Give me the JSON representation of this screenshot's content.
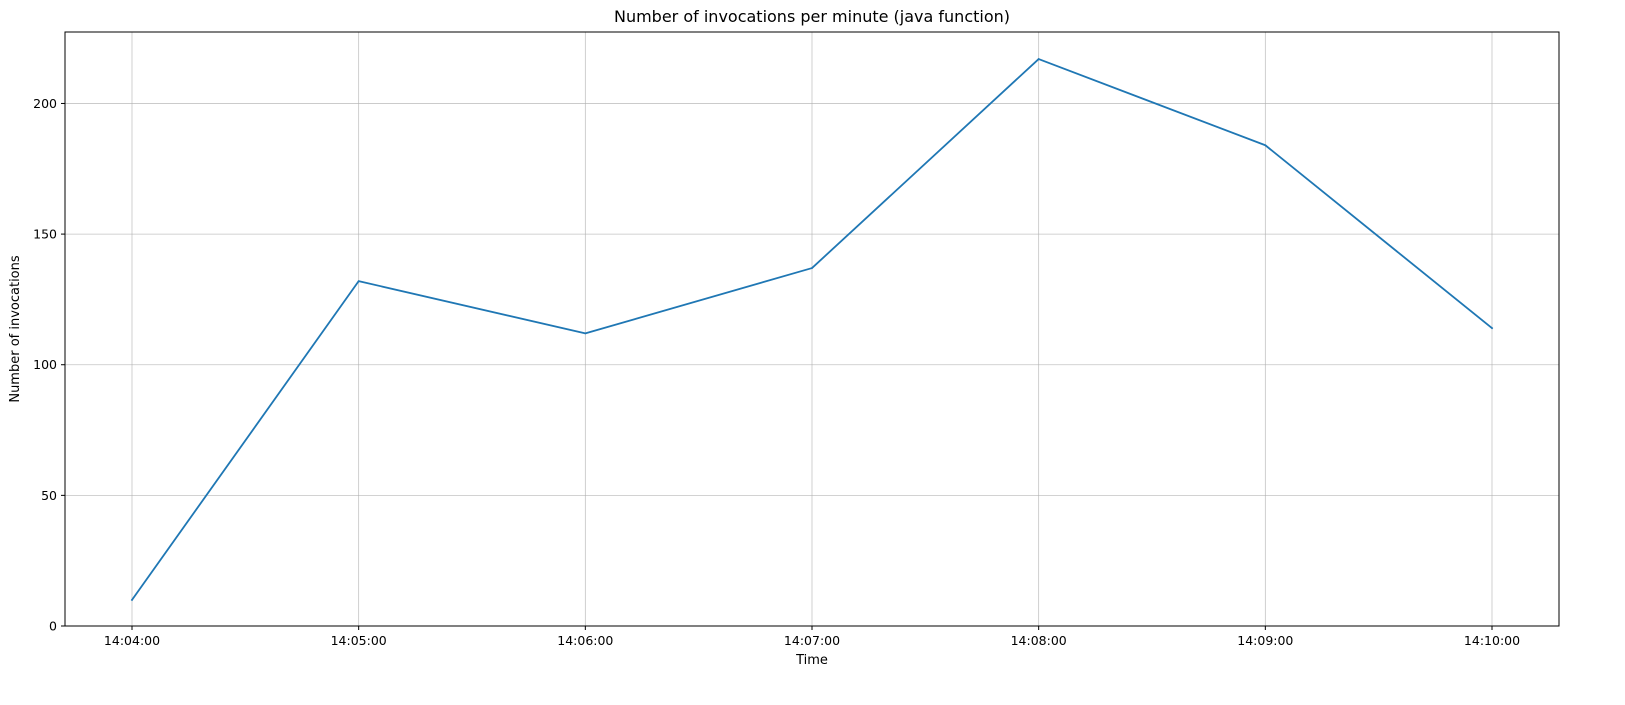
{
  "chart_data": {
    "type": "line",
    "title": "Number of invocations per minute (java function)",
    "xlabel": "Time",
    "ylabel": "Number of invocations",
    "x": [
      "14:04:00",
      "14:05:00",
      "14:06:00",
      "14:07:00",
      "14:08:00",
      "14:09:00",
      "14:10:00"
    ],
    "series": [
      {
        "values": [
          10,
          132,
          112,
          137,
          217,
          184,
          114
        ],
        "color": "#1f77b4"
      }
    ],
    "xticks": [
      "14:04:00",
      "14:05:00",
      "14:06:00",
      "14:07:00",
      "14:08:00",
      "14:09:00",
      "14:10:00"
    ],
    "yticks": [
      0,
      50,
      100,
      150,
      200
    ],
    "ylim": [
      0,
      227.35
    ],
    "grid": true,
    "legend": "none"
  }
}
